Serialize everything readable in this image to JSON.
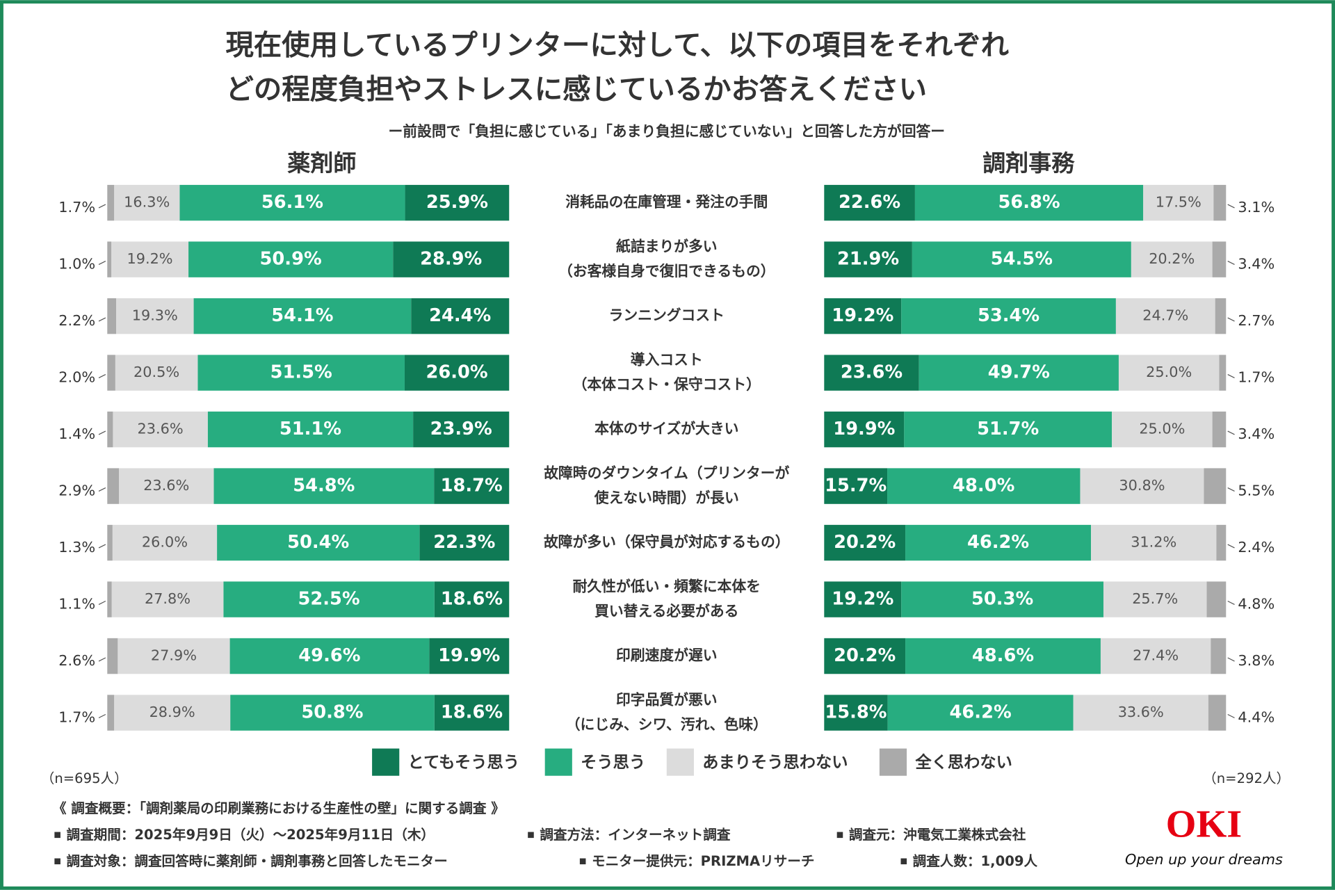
{
  "title": [
    "現在使用しているプリンターに対して、以下の項目をそれぞれ",
    "どの程度負担やストレスに感じているかお答えください"
  ],
  "subtitle": "ー前設問で「負担に感じている」「あまり負担に感じていない」と回答した方が回答ー",
  "chart_data": [
    {
      "type": "diverging-stacked-bar",
      "title": "薬剤師",
      "note": "（n=695人）",
      "categories": [
        [
          "消耗品の在庫管理・発注の手間"
        ],
        [
          "紙詰まりが多い",
          "（お客様自身で復旧できるもの）"
        ],
        [
          "ランニングコスト"
        ],
        [
          "導入コスト",
          "（本体コスト・保守コスト）"
        ],
        [
          "本体のサイズが大きい"
        ],
        [
          "故障時のダウンタイム（プリンターが",
          "使えない時間）が長い"
        ],
        [
          "故障が多い（保守員が対応するもの）"
        ],
        [
          "耐久性が低い・頻繁に本体を",
          "買い替える必要がある"
        ],
        [
          "印刷速度が遅い"
        ],
        [
          "印字品質が悪い",
          "（にじみ、シワ、汚れ、色味）"
        ]
      ],
      "series": [
        {
          "name": "とてもそう思う",
          "color": "#0f7a55",
          "values": [
            25.9,
            28.9,
            24.4,
            26.0,
            23.9,
            18.7,
            22.3,
            18.6,
            19.9,
            18.6
          ],
          "value_labels": [
            "25.9%",
            "28.9%",
            "24.4%",
            "26.0%",
            "23.9%",
            "18.7%",
            "22.3%",
            "18.6%",
            "19.9%",
            "18.6%"
          ]
        },
        {
          "name": "そう思う",
          "color": "#27ad80",
          "values": [
            56.1,
            50.9,
            54.1,
            51.5,
            51.1,
            54.8,
            50.4,
            52.5,
            49.6,
            50.8
          ],
          "value_labels": [
            "56.1%",
            "50.9%",
            "54.1%",
            "51.5%",
            "51.1%",
            "54.8%",
            "50.4%",
            "52.5%",
            "49.6%",
            "50.8%"
          ]
        },
        {
          "name": "あまりそう思わない",
          "color": "#dcdcdc",
          "values": [
            16.3,
            19.2,
            19.3,
            20.5,
            23.6,
            23.6,
            26.0,
            27.8,
            27.9,
            28.9
          ],
          "value_labels": [
            "16.3%",
            "19.2%",
            "19.3%",
            "20.5%",
            "23.6%",
            "23.6%",
            "26.0%",
            "27.8%",
            "27.9%",
            "28.9%"
          ]
        },
        {
          "name": "全く思わない",
          "color": "#aaaaaa",
          "values": [
            1.7,
            1.0,
            2.2,
            2.0,
            1.4,
            2.9,
            1.3,
            1.1,
            2.6,
            1.7
          ],
          "value_labels": [
            "1.7%",
            "1.0%",
            "2.2%",
            "2.0%",
            "1.4%",
            "2.9%",
            "1.3%",
            "1.1%",
            "2.6%",
            "1.7%"
          ]
        }
      ]
    },
    {
      "type": "diverging-stacked-bar",
      "title": "調剤事務",
      "note": "（n=292人）",
      "series": [
        {
          "color": "#0f7a55",
          "values": [
            22.6,
            21.9,
            19.2,
            23.6,
            19.9,
            15.7,
            20.2,
            19.2,
            20.2,
            15.8
          ],
          "value_labels": [
            "22.6%",
            "21.9%",
            "19.2%",
            "23.6%",
            "19.9%",
            "15.7%",
            "20.2%",
            "19.2%",
            "20.2%",
            "15.8%"
          ]
        },
        {
          "color": "#27ad80",
          "values": [
            56.8,
            54.5,
            53.4,
            49.7,
            51.7,
            48.0,
            46.2,
            50.3,
            48.6,
            46.2
          ],
          "value_labels": [
            "56.8%",
            "54.5%",
            "53.4%",
            "49.7%",
            "51.7%",
            "48.0%",
            "46.2%",
            "50.3%",
            "48.6%",
            "46.2%"
          ]
        },
        {
          "color": "#dcdcdc",
          "values": [
            17.5,
            20.2,
            24.7,
            25.0,
            25.0,
            30.8,
            31.2,
            25.7,
            27.4,
            33.6
          ],
          "value_labels": [
            "17.5%",
            "20.2%",
            "24.7%",
            "25.0%",
            "25.0%",
            "30.8%",
            "31.2%",
            "25.7%",
            "27.4%",
            "33.6%"
          ]
        },
        {
          "color": "#aaaaaa",
          "values": [
            3.1,
            3.4,
            2.7,
            1.7,
            3.4,
            5.5,
            2.4,
            4.8,
            3.8,
            4.4
          ],
          "value_labels": [
            "3.1%",
            "3.4%",
            "2.7%",
            "1.7%",
            "3.4%",
            "5.5%",
            "2.4%",
            "4.8%",
            "3.8%",
            "4.4%"
          ]
        }
      ]
    }
  ],
  "footer": {
    "heading": "《 調査概要：「調剤薬局の印刷業務における生産性の壁」に関する調査 》",
    "items": [
      "調査期間：2025年9月9日（火）～2025年9月11日（木）",
      "調査方法：インターネット調査",
      "調査元：沖電気工業株式会社",
      "調査対象：調査回答時に薬剤師・調剤事務と回答したモニター",
      "モニター提供元：PRIZMAリサーチ",
      "調査人数：1,009人"
    ]
  },
  "logo": {
    "name": "OKI",
    "tagline": "Open up your dreams"
  }
}
